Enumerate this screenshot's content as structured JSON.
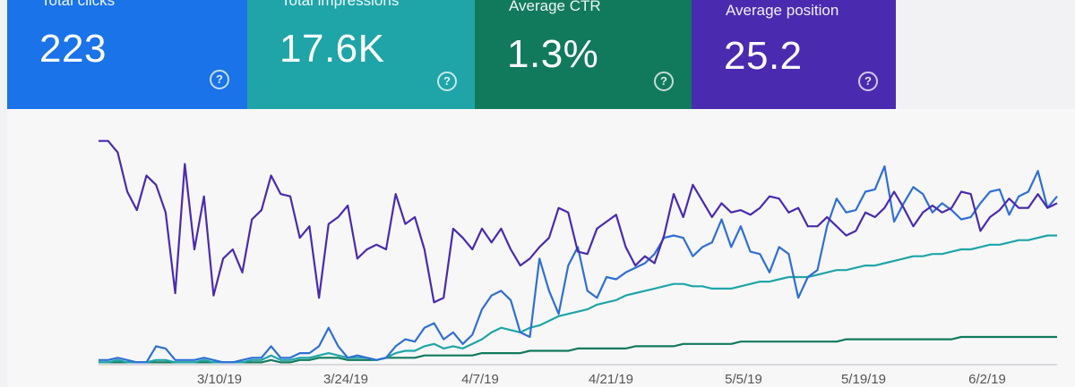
{
  "summary_cards": [
    {
      "id": "clicks",
      "label": "Total clicks",
      "value": "223",
      "color": "#1a73e8"
    },
    {
      "id": "impressions",
      "label": "Total impressions",
      "value": "17.6K",
      "color": "#1fa5a8"
    },
    {
      "id": "ctr",
      "label": "Average CTR",
      "value": "1.3%",
      "color": "#127a5c"
    },
    {
      "id": "position",
      "label": "Average position",
      "value": "25.2",
      "color": "#4a2bb0"
    }
  ],
  "help_glyph": "?",
  "chart_data": {
    "type": "line",
    "x_tick_labels": [
      "3/10/19",
      "3/24/19",
      "4/7/19",
      "4/21/19",
      "5/5/19",
      "5/19/19",
      "6/2/19"
    ],
    "grid": false,
    "series": [
      {
        "color": "#4a2bb0",
        "values": [
          97,
          97,
          92,
          75,
          67,
          82,
          78,
          66,
          31,
          87,
          50,
          73,
          30,
          46,
          50,
          40,
          63,
          67,
          82,
          74,
          73,
          55,
          60,
          29,
          61,
          64,
          69,
          46,
          50,
          52,
          50,
          74,
          61,
          64,
          50,
          27,
          29,
          59,
          55,
          50,
          59,
          53,
          59,
          50,
          43,
          46,
          51,
          55,
          68,
          66,
          49,
          48,
          59,
          62,
          65,
          51,
          43,
          47,
          44,
          56,
          74,
          64,
          78,
          71,
          64,
          70,
          66,
          67,
          65,
          68,
          73,
          72,
          66,
          68,
          60,
          60,
          64,
          60,
          56,
          58,
          66,
          64,
          68,
          75,
          68,
          60,
          66,
          69,
          66,
          68,
          75,
          74,
          58,
          64,
          67,
          72,
          68,
          68,
          74,
          68,
          70
        ]
      },
      {
        "color": "#2f6fd6",
        "values": [
          2,
          2,
          3,
          2,
          1,
          1,
          8,
          7,
          2,
          2,
          2,
          3,
          2,
          1,
          1,
          2,
          3,
          3,
          8,
          3,
          3,
          5,
          5,
          8,
          16,
          8,
          3,
          4,
          3,
          2,
          3,
          8,
          11,
          10,
          16,
          18,
          11,
          14,
          9,
          13,
          24,
          30,
          32,
          28,
          14,
          12,
          46,
          32,
          22,
          43,
          51,
          32,
          29,
          38,
          37,
          40,
          42,
          44,
          48,
          55,
          56,
          55,
          47,
          51,
          53,
          63,
          51,
          60,
          49,
          48,
          40,
          51,
          48,
          29,
          38,
          41,
          60,
          72,
          66,
          67,
          75,
          76,
          86,
          62,
          70,
          77,
          74,
          66,
          70,
          67,
          63,
          64,
          70,
          75,
          76,
          65,
          73,
          75,
          84,
          68,
          73
        ]
      },
      {
        "color": "#1fa5a8",
        "values": [
          1,
          1,
          2,
          1,
          1,
          1,
          2,
          2,
          1,
          1,
          1,
          2,
          1,
          1,
          1,
          1,
          2,
          2,
          4,
          2,
          2,
          3,
          3,
          4,
          5,
          4,
          3,
          3,
          3,
          2,
          3,
          5,
          6,
          6,
          8,
          9,
          7,
          8,
          7,
          9,
          11,
          14,
          16,
          15,
          14,
          16,
          17,
          19,
          21,
          22,
          23,
          24,
          26,
          27,
          28,
          30,
          31,
          32,
          33,
          34,
          35,
          35,
          34,
          34,
          33,
          33,
          33,
          34,
          35,
          36,
          36,
          37,
          38,
          38,
          38,
          39,
          40,
          41,
          41,
          42,
          43,
          43,
          44,
          45,
          46,
          47,
          47,
          48,
          48,
          49,
          50,
          50,
          51,
          52,
          52,
          53,
          54,
          54,
          55,
          56,
          56
        ]
      },
      {
        "color": "#127a5c",
        "values": [
          1,
          1,
          1,
          1,
          1,
          1,
          1,
          1,
          1,
          1,
          1,
          1,
          1,
          1,
          1,
          1,
          1,
          1,
          2,
          1,
          1,
          2,
          2,
          3,
          3,
          3,
          2,
          2,
          2,
          2,
          3,
          3,
          3,
          3,
          4,
          4,
          4,
          4,
          4,
          4,
          5,
          5,
          5,
          5,
          5,
          6,
          6,
          6,
          6,
          6,
          7,
          7,
          7,
          7,
          7,
          7,
          8,
          8,
          8,
          8,
          8,
          9,
          9,
          9,
          9,
          9,
          9,
          10,
          10,
          10,
          10,
          10,
          10,
          10,
          10,
          10,
          10,
          10,
          11,
          11,
          11,
          11,
          11,
          11,
          11,
          11,
          11,
          11,
          11,
          11,
          12,
          12,
          12,
          12,
          12,
          12,
          12,
          12,
          12,
          12,
          12
        ]
      }
    ]
  }
}
